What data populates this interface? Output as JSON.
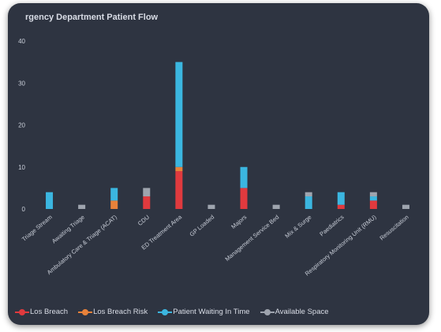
{
  "chart_data": {
    "type": "bar",
    "stacked": true,
    "title": "rgency Department Patient Flow",
    "xlabel": "",
    "ylabel": "",
    "ylim": [
      0,
      40
    ],
    "yticks": [
      0,
      10,
      20,
      30,
      40
    ],
    "grid": false,
    "legend_position": "bottom",
    "categories": [
      "Triage Stream",
      "Awaiting Triage",
      "Ambulatory Care & Triage (ACAT)",
      "CDU",
      "ED Treatment Area",
      "GP Loaded",
      "Majors",
      "Management Service Bed",
      "Mix & Surge",
      "Paediatrics",
      "Respiratory Monitoring Unit (RMU)",
      "Resuscitation"
    ],
    "series": [
      {
        "name": "Los Breach",
        "color": "#e03a3e",
        "values": [
          0,
          0,
          0,
          3,
          9,
          0,
          5,
          0,
          0,
          1,
          2,
          0
        ]
      },
      {
        "name": "Los Breach Risk",
        "color": "#e8823a",
        "values": [
          0,
          0,
          2,
          0,
          1,
          0,
          0,
          0,
          0,
          0,
          0,
          0
        ]
      },
      {
        "name": "Patient Waiting In Time",
        "color": "#3bb6e0",
        "values": [
          4,
          0,
          3,
          0,
          25,
          0,
          5,
          0,
          3,
          3,
          1,
          0
        ]
      },
      {
        "name": "Available Space",
        "color": "#9ea4ae",
        "values": [
          0,
          1,
          0,
          2,
          0,
          1,
          0,
          1,
          1,
          0,
          1,
          1
        ]
      }
    ]
  }
}
